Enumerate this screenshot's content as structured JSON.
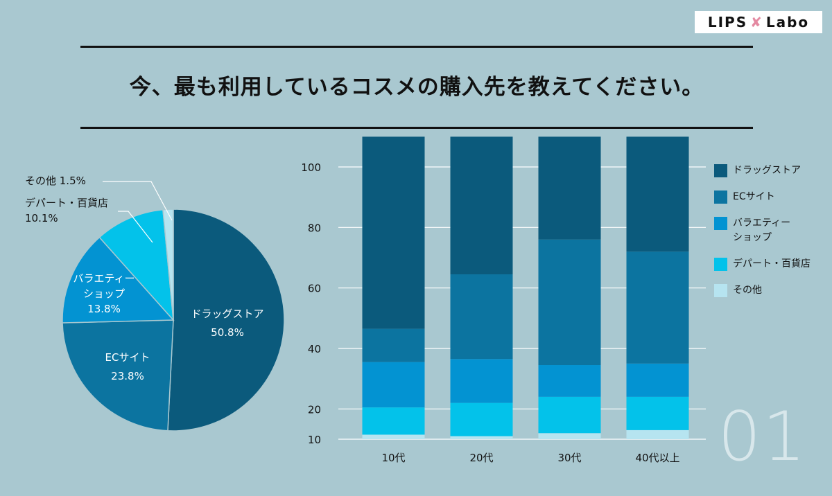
{
  "brand": {
    "logo_left": "LIPS",
    "logo_right": "Labo"
  },
  "title": "今、最も利用しているコスメの購入先を教えてください。",
  "page_number": "01",
  "colors": {
    "drugstore": "#0b5a7c",
    "ec": "#0c74a0",
    "variety": "#0393d2",
    "department": "#03c2ea",
    "other": "#b6e4f0",
    "background": "#a9c8d0"
  },
  "chart_data": [
    {
      "type": "pie",
      "slices": [
        {
          "name": "ドラッグストア",
          "value": 50.8,
          "label_name": "ドラッグストア",
          "label_value": "50.8%",
          "color": "#0b5a7c"
        },
        {
          "name": "ECサイト",
          "value": 23.8,
          "label_name": "ECサイト",
          "label_value": "23.8%",
          "color": "#0c74a0"
        },
        {
          "name": "バラエティーショップ",
          "value": 13.8,
          "label_name": "バラエティー\nショップ",
          "label_value": "13.8%",
          "color": "#0393d2"
        },
        {
          "name": "デパート・百貨店",
          "value": 10.1,
          "label_name": "デパート・百貨店",
          "label_value": "10.1%",
          "color": "#03c2ea"
        },
        {
          "name": "その他",
          "value": 1.5,
          "label_name": "その他",
          "label_value": "1.5%",
          "color": "#b6e4f0"
        }
      ]
    },
    {
      "type": "bar",
      "stacked": true,
      "categories": [
        "10代",
        "20代",
        "30代",
        "40代以上"
      ],
      "ylim": [
        10,
        100
      ],
      "yticks": [
        10,
        20,
        40,
        60,
        80,
        100
      ],
      "grid": true,
      "legend_position": "right",
      "series": [
        {
          "name": "その他",
          "legend_label": "その他",
          "color": "#b6e4f0",
          "values": [
            1.5,
            1.0,
            2.0,
            3.0
          ]
        },
        {
          "name": "デパート・百貨店",
          "legend_label": "デパート・百貨店",
          "color": "#03c2ea",
          "values": [
            9.0,
            11.0,
            12.0,
            11.0
          ]
        },
        {
          "name": "バラエティーショップ",
          "legend_label": "バラエティー\nショップ",
          "color": "#0393d2",
          "values": [
            15.0,
            14.5,
            10.5,
            11.0
          ]
        },
        {
          "name": "ECサイト",
          "legend_label": "ECサイト",
          "color": "#0c74a0",
          "values": [
            11.0,
            28.0,
            41.5,
            37.0
          ]
        },
        {
          "name": "ドラッグストア",
          "legend_label": "ドラッグストア",
          "color": "#0b5a7c",
          "values": [
            63.5,
            45.5,
            34.0,
            38.0
          ]
        }
      ]
    }
  ]
}
